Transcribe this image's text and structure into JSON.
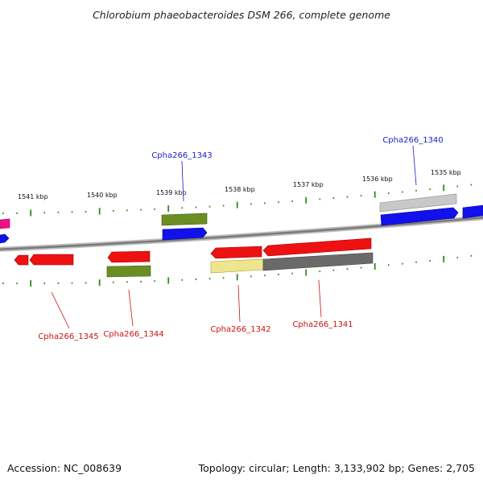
{
  "title": "Chlorobium phaeobacteroides DSM 266, complete genome",
  "footer": {
    "accession": "Accession: NC_008639",
    "summary": "Topology: circular; Length: 3,133,902 bp; Genes: 2,705"
  },
  "colors": {
    "tick_green": "#2e8b1a",
    "backbone": "#8c8c8c",
    "forward_label": "#1a1acc",
    "reverse_label": "#cc1111",
    "gene_red": "#ee1111",
    "gene_blue": "#1111ee",
    "gene_olive": "#6b8e23",
    "gene_gray": "#bdbdbd",
    "gene_darkgray": "#6a6a6a",
    "gene_khaki": "#eee68c",
    "gene_magenta": "#ee1188"
  },
  "scale": {
    "unit": "kbp",
    "ticks": [
      {
        "label": "1541 kbp"
      },
      {
        "label": "1540 kbp"
      },
      {
        "label": "1539 kbp"
      },
      {
        "label": "1538 kbp"
      },
      {
        "label": "1537 kbp"
      },
      {
        "label": "1536 kbp"
      },
      {
        "label": "1535 kbp"
      }
    ]
  },
  "gene_labels": [
    {
      "id": "Cpha266_1343",
      "text": "Cpha266_1343",
      "strand": "forward"
    },
    {
      "id": "Cpha266_1340",
      "text": "Cpha266_1340",
      "strand": "forward"
    },
    {
      "id": "Cpha266_1345",
      "text": "Cpha266_1345",
      "strand": "reverse"
    },
    {
      "id": "Cpha266_1344",
      "text": "Cpha266_1344",
      "strand": "reverse"
    },
    {
      "id": "Cpha266_1342",
      "text": "Cpha266_1342",
      "strand": "reverse"
    },
    {
      "id": "Cpha266_1341",
      "text": "Cpha266_1341",
      "strand": "reverse"
    }
  ]
}
